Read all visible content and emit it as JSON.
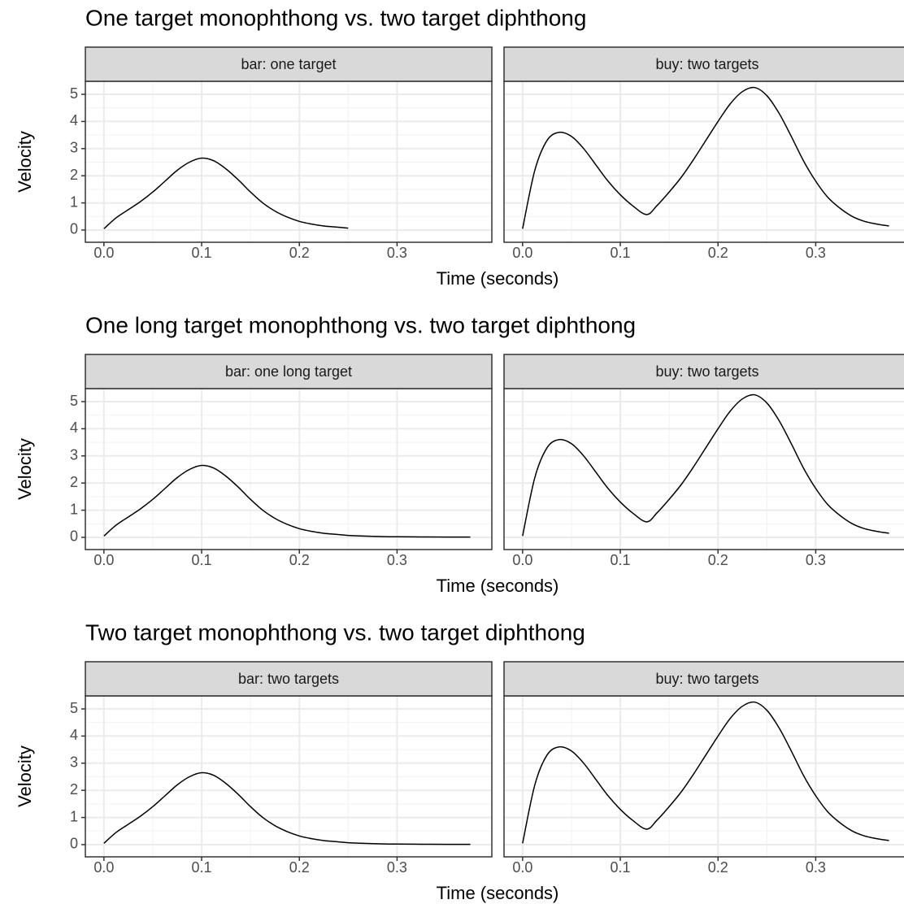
{
  "chart_data": [
    {
      "type": "line",
      "title": "One target monophthong vs. two target diphthong",
      "x_label": "Time (seconds)",
      "y_label": "Velocity",
      "xlim": [
        -0.019,
        0.397
      ],
      "ylim": [
        -0.45,
        5.48
      ],
      "xticks": [
        {
          "value": 0,
          "label": "0.0"
        },
        0.1,
        0.2,
        0.3
      ],
      "yticks": [
        0,
        1,
        2,
        3,
        4,
        5
      ],
      "grid": true,
      "color": "#000000",
      "panels": [
        {
          "strip": "bar: one target",
          "x": [
            0,
            0.0125,
            0.025,
            0.0375,
            0.05,
            0.0625,
            0.075,
            0.0875,
            0.1,
            0.1125,
            0.125,
            0.1375,
            0.15,
            0.1625,
            0.175,
            0.1875,
            0.2,
            0.2125,
            0.225,
            0.2375,
            0.25
          ],
          "values": [
            0.05,
            0.45,
            0.75,
            1.05,
            1.4,
            1.8,
            2.2,
            2.5,
            2.65,
            2.55,
            2.25,
            1.85,
            1.4,
            1.0,
            0.7,
            0.48,
            0.32,
            0.22,
            0.15,
            0.11,
            0.07
          ]
        },
        {
          "strip": "buy: two targets",
          "x": [
            0,
            0.0125,
            0.025,
            0.0375,
            0.05,
            0.0625,
            0.075,
            0.0875,
            0.1,
            0.1125,
            0.127,
            0.1375,
            0.15,
            0.1625,
            0.175,
            0.1875,
            0.2,
            0.2125,
            0.225,
            0.2375,
            0.25,
            0.2625,
            0.275,
            0.2875,
            0.3,
            0.3125,
            0.325,
            0.3375,
            0.35,
            0.3625,
            0.375
          ],
          "values": [
            0.05,
            2.2,
            3.3,
            3.6,
            3.45,
            3.0,
            2.4,
            1.8,
            1.3,
            0.9,
            0.57,
            0.9,
            1.4,
            1.95,
            2.6,
            3.3,
            4.0,
            4.65,
            5.1,
            5.25,
            4.95,
            4.3,
            3.45,
            2.55,
            1.8,
            1.2,
            0.8,
            0.5,
            0.32,
            0.22,
            0.15
          ]
        }
      ]
    },
    {
      "type": "line",
      "title": "One long target monophthong vs. two target diphthong",
      "x_label": "Time (seconds)",
      "y_label": "Velocity",
      "xlim": [
        -0.019,
        0.397
      ],
      "ylim": [
        -0.45,
        5.48
      ],
      "xticks": [
        {
          "value": 0,
          "label": "0.0"
        },
        0.1,
        0.2,
        0.3
      ],
      "yticks": [
        0,
        1,
        2,
        3,
        4,
        5
      ],
      "grid": true,
      "color": "#000000",
      "panels": [
        {
          "strip": "bar: one long target",
          "x": [
            0,
            0.0125,
            0.025,
            0.0375,
            0.05,
            0.0625,
            0.075,
            0.0875,
            0.1,
            0.1125,
            0.125,
            0.1375,
            0.15,
            0.1625,
            0.175,
            0.1875,
            0.2,
            0.2125,
            0.225,
            0.2375,
            0.25,
            0.2625,
            0.275,
            0.2875,
            0.3,
            0.325,
            0.35,
            0.375
          ],
          "values": [
            0.05,
            0.45,
            0.75,
            1.05,
            1.4,
            1.8,
            2.2,
            2.5,
            2.65,
            2.55,
            2.25,
            1.85,
            1.4,
            1.0,
            0.7,
            0.48,
            0.32,
            0.22,
            0.15,
            0.11,
            0.07,
            0.05,
            0.035,
            0.025,
            0.02,
            0.015,
            0.01,
            0.01
          ]
        },
        {
          "strip": "buy: two targets",
          "x": [
            0,
            0.0125,
            0.025,
            0.0375,
            0.05,
            0.0625,
            0.075,
            0.0875,
            0.1,
            0.1125,
            0.127,
            0.1375,
            0.15,
            0.1625,
            0.175,
            0.1875,
            0.2,
            0.2125,
            0.225,
            0.2375,
            0.25,
            0.2625,
            0.275,
            0.2875,
            0.3,
            0.3125,
            0.325,
            0.3375,
            0.35,
            0.3625,
            0.375
          ],
          "values": [
            0.05,
            2.2,
            3.3,
            3.6,
            3.45,
            3.0,
            2.4,
            1.8,
            1.3,
            0.9,
            0.57,
            0.9,
            1.4,
            1.95,
            2.6,
            3.3,
            4.0,
            4.65,
            5.1,
            5.25,
            4.95,
            4.3,
            3.45,
            2.55,
            1.8,
            1.2,
            0.8,
            0.5,
            0.32,
            0.22,
            0.15
          ]
        }
      ]
    },
    {
      "type": "line",
      "title": "Two target monophthong vs. two target diphthong",
      "x_label": "Time (seconds)",
      "y_label": "Velocity",
      "xlim": [
        -0.019,
        0.397
      ],
      "ylim": [
        -0.45,
        5.48
      ],
      "xticks": [
        {
          "value": 0,
          "label": "0.0"
        },
        0.1,
        0.2,
        0.3
      ],
      "yticks": [
        0,
        1,
        2,
        3,
        4,
        5
      ],
      "grid": true,
      "color": "#000000",
      "panels": [
        {
          "strip": "bar: two targets",
          "x": [
            0,
            0.0125,
            0.025,
            0.0375,
            0.05,
            0.0625,
            0.075,
            0.0875,
            0.1,
            0.1125,
            0.125,
            0.1375,
            0.15,
            0.1625,
            0.175,
            0.1875,
            0.2,
            0.2125,
            0.225,
            0.2375,
            0.25,
            0.2625,
            0.275,
            0.2875,
            0.3,
            0.325,
            0.35,
            0.375
          ],
          "values": [
            0.05,
            0.45,
            0.75,
            1.05,
            1.4,
            1.8,
            2.2,
            2.5,
            2.65,
            2.55,
            2.25,
            1.85,
            1.4,
            1.0,
            0.7,
            0.48,
            0.32,
            0.22,
            0.15,
            0.11,
            0.07,
            0.05,
            0.035,
            0.025,
            0.02,
            0.015,
            0.01,
            0.01
          ]
        },
        {
          "strip": "buy: two targets",
          "x": [
            0,
            0.0125,
            0.025,
            0.0375,
            0.05,
            0.0625,
            0.075,
            0.0875,
            0.1,
            0.1125,
            0.127,
            0.1375,
            0.15,
            0.1625,
            0.175,
            0.1875,
            0.2,
            0.2125,
            0.225,
            0.2375,
            0.25,
            0.2625,
            0.275,
            0.2875,
            0.3,
            0.3125,
            0.325,
            0.3375,
            0.35,
            0.3625,
            0.375
          ],
          "values": [
            0.05,
            2.2,
            3.3,
            3.6,
            3.45,
            3.0,
            2.4,
            1.8,
            1.3,
            0.9,
            0.57,
            0.9,
            1.4,
            1.95,
            2.6,
            3.3,
            4.0,
            4.65,
            5.1,
            5.25,
            4.95,
            4.3,
            3.45,
            2.55,
            1.8,
            1.2,
            0.8,
            0.5,
            0.32,
            0.22,
            0.15
          ]
        }
      ]
    }
  ]
}
